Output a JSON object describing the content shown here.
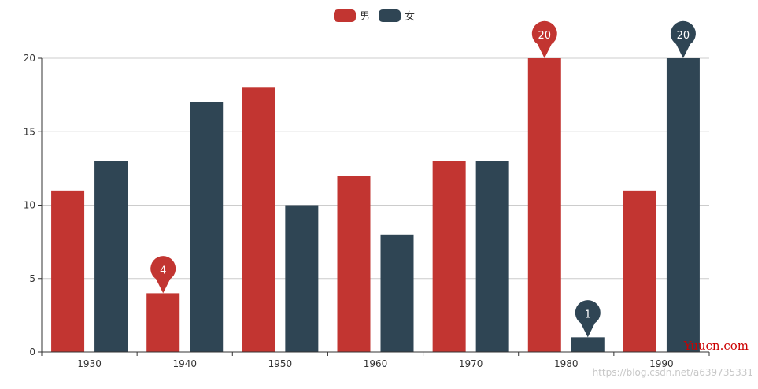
{
  "chart_data": {
    "type": "bar",
    "categories": [
      "1930",
      "1940",
      "1950",
      "1960",
      "1970",
      "1980",
      "1990"
    ],
    "series": [
      {
        "name": "男",
        "color": "#c23531",
        "values": [
          11,
          4,
          18,
          12,
          13,
          20,
          11
        ]
      },
      {
        "name": "女",
        "color": "#2f4554",
        "values": [
          13,
          17,
          10,
          8,
          13,
          1,
          20
        ]
      }
    ],
    "ylim": [
      0,
      20
    ],
    "yticks": [
      0,
      5,
      10,
      15,
      20
    ],
    "grid": true,
    "legend_position": "top-center",
    "markers": [
      {
        "series": 0,
        "category": "1940",
        "value": 4,
        "label": "4"
      },
      {
        "series": 0,
        "category": "1980",
        "value": 20,
        "label": "20"
      },
      {
        "series": 1,
        "category": "1980",
        "value": 1,
        "label": "1"
      },
      {
        "series": 1,
        "category": "1990",
        "value": 20,
        "label": "20"
      }
    ]
  },
  "watermarks": {
    "brand": "Yuucn.com",
    "url": "https://blog.csdn.net/a639735331"
  }
}
